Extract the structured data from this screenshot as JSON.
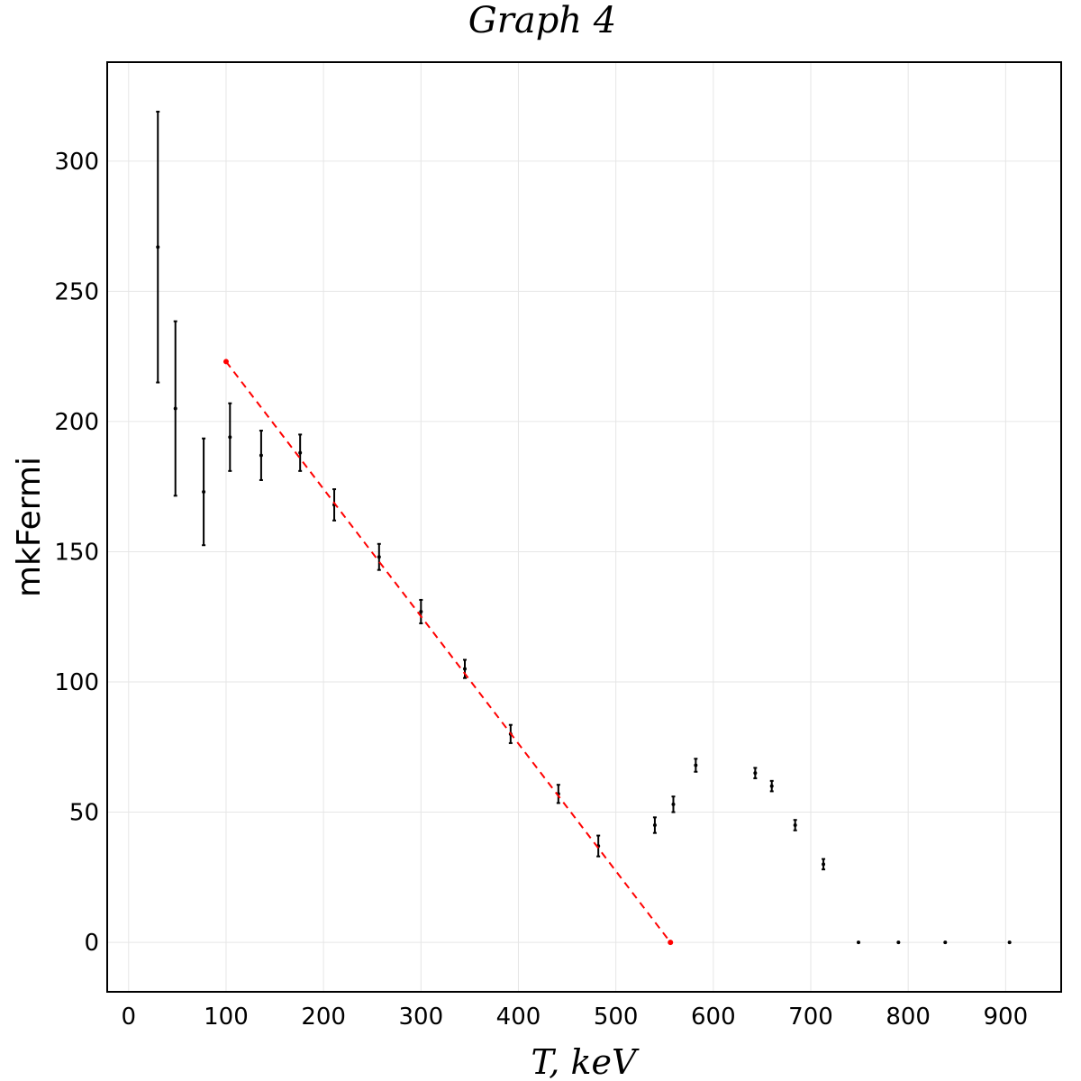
{
  "chart_data": {
    "type": "scatter",
    "title": "Graph 4",
    "xlabel": "T, keV",
    "ylabel": "mkFermi",
    "xlim": [
      -22,
      957
    ],
    "ylim": [
      -19,
      338
    ],
    "grid": true,
    "x_ticks": [
      0,
      100,
      200,
      300,
      400,
      500,
      600,
      700,
      800,
      900
    ],
    "y_ticks": [
      0,
      50,
      100,
      150,
      200,
      250,
      300
    ],
    "colors": {
      "points": "#000000",
      "fit_line": "#ff0000",
      "grid": "#e6e6e6",
      "frame": "#000000"
    },
    "series": [
      {
        "x": [
          30,
          48,
          77,
          104,
          136,
          176,
          211,
          257,
          300,
          345,
          392,
          441,
          482,
          540,
          559,
          582,
          643,
          660,
          684,
          713,
          749,
          790,
          838,
          904
        ],
        "y": [
          267,
          205,
          173,
          194,
          187,
          188,
          168,
          148,
          127,
          105,
          80,
          57,
          37,
          45,
          53,
          68,
          65,
          60,
          45,
          30,
          0,
          0,
          0,
          0
        ],
        "err": [
          52,
          33.5,
          20.5,
          13,
          9.5,
          7,
          6,
          5,
          4.5,
          3.5,
          3.5,
          3.5,
          4,
          3,
          3,
          2.5,
          2,
          2,
          2,
          2,
          0,
          0,
          0,
          0
        ]
      },
      {
        "style": "dashed-line",
        "x": [
          100,
          556
        ],
        "y": [
          223,
          0
        ]
      }
    ]
  }
}
